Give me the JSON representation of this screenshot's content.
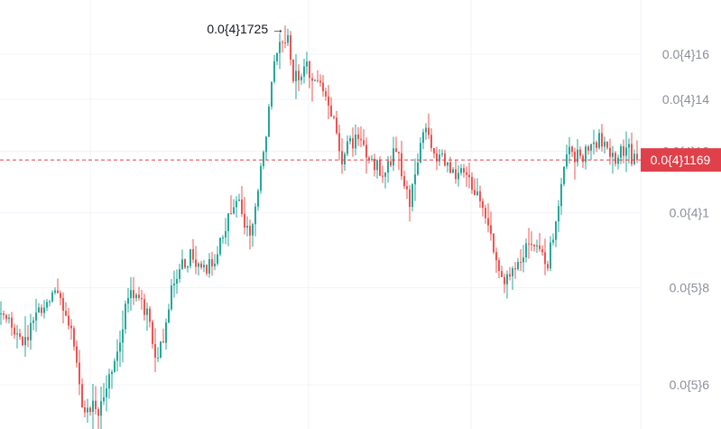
{
  "chart_data": {
    "type": "candlestick",
    "colors": {
      "up": "#26a69a",
      "down": "#ef5350",
      "grid": "#f0f3fa",
      "price_line": "#e0404a",
      "price_tag": "#e0404a"
    },
    "grid": true,
    "y_scale": "log",
    "y_axis_position": "right",
    "ylim": [
      5.5e-06,
      1.75e-05
    ],
    "y_ticks": [
      {
        "value": 6e-06,
        "label": "0.0{5}6"
      },
      {
        "value": 8e-06,
        "label": "0.0{5}8"
      },
      {
        "value": 1e-05,
        "label": "0.0{4}1"
      },
      {
        "value": 1.2e-05,
        "label": "0.0{4}12"
      },
      {
        "value": 1.4e-05,
        "label": "0.0{4}14"
      },
      {
        "value": 1.6e-05,
        "label": "0.0{4}16"
      }
    ],
    "last_price": {
      "value": 1.169e-05,
      "label": "0.0{4}1169"
    },
    "high_marker": {
      "value": 1.725e-05,
      "label": "0.0{4}1725",
      "arrow": "→"
    },
    "waypoints": [
      [
        0,
        7.4e-06
      ],
      [
        8,
        6.8e-06
      ],
      [
        14,
        7.4e-06
      ],
      [
        20,
        7.8e-06
      ],
      [
        26,
        7.2e-06
      ],
      [
        30,
        5.6e-06
      ],
      [
        36,
        5.6e-06
      ],
      [
        42,
        6.5e-06
      ],
      [
        48,
        8e-06
      ],
      [
        54,
        7.4e-06
      ],
      [
        58,
        6.4e-06
      ],
      [
        64,
        8.2e-06
      ],
      [
        70,
        8.8e-06
      ],
      [
        76,
        8.4e-06
      ],
      [
        80,
        8.8e-06
      ],
      [
        84,
        1e-05
      ],
      [
        88,
        1.04e-05
      ],
      [
        92,
        9.2e-06
      ],
      [
        96,
        1.12e-05
      ],
      [
        101,
        1.54e-05
      ],
      [
        104,
        1.66e-05
      ],
      [
        106,
        1.66e-05
      ],
      [
        108,
        1.48e-05
      ],
      [
        112,
        1.55e-05
      ],
      [
        117,
        1.48e-05
      ],
      [
        121,
        1.38e-05
      ],
      [
        126,
        1.18e-05
      ],
      [
        131,
        1.25e-05
      ],
      [
        136,
        1.16e-05
      ],
      [
        141,
        1.14e-05
      ],
      [
        146,
        1.2e-05
      ],
      [
        151,
        1.03e-05
      ],
      [
        156,
        1.28e-05
      ],
      [
        161,
        1.18e-05
      ],
      [
        166,
        1.14e-05
      ],
      [
        171,
        1.12e-05
      ],
      [
        176,
        1.05e-05
      ],
      [
        181,
        9.2e-06
      ],
      [
        186,
        8.2e-06
      ],
      [
        190,
        8.3e-06
      ],
      [
        194,
        9e-06
      ],
      [
        198,
        9e-06
      ],
      [
        202,
        8.6e-06
      ],
      [
        206,
        1e-05
      ],
      [
        209,
        1.2e-05
      ],
      [
        215,
        1.18e-05
      ],
      [
        221,
        1.25e-05
      ],
      [
        227,
        1.18e-05
      ],
      [
        231,
        1.21e-05
      ],
      [
        234,
        1.17e-05
      ]
    ]
  }
}
